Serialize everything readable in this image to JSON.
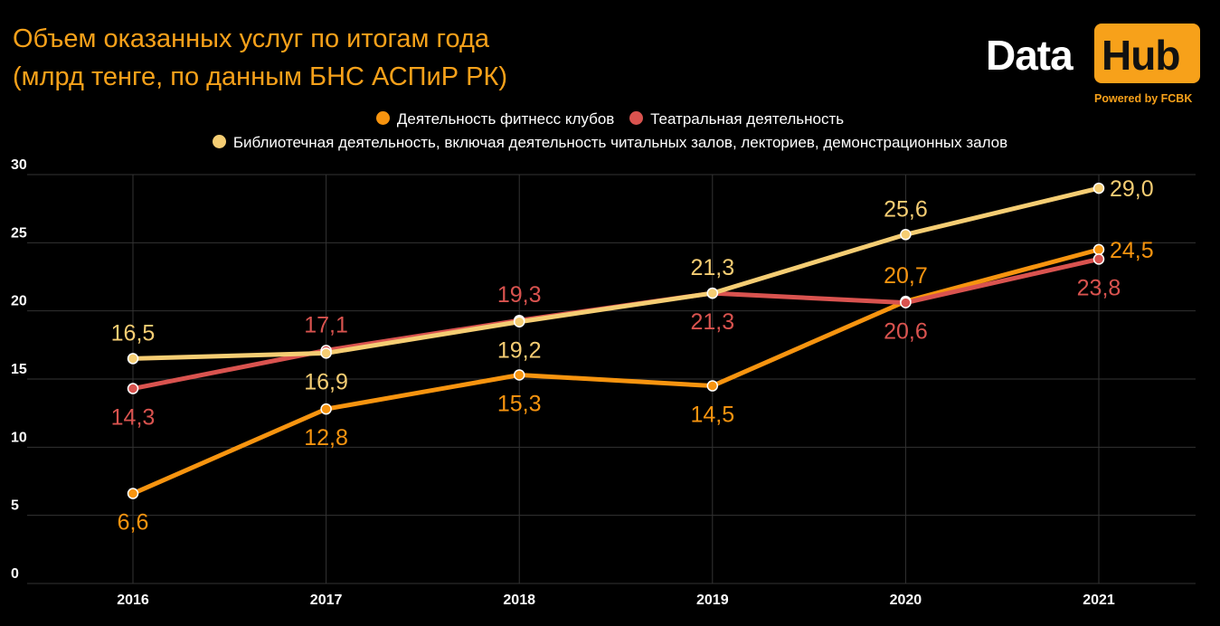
{
  "title": {
    "line1": "Объем оказанных услуг по итогам года",
    "line2": "(млрд тенге, по данным БНС АСПиР РК)"
  },
  "logo": {
    "word1": "Data",
    "word2": "Hub",
    "tagline": "Powered by FCBK"
  },
  "colors": {
    "background": "#000000",
    "accent": "#f7a11a",
    "grid": "#333333"
  },
  "chart_data": {
    "type": "line",
    "x": [
      "2016",
      "2017",
      "2018",
      "2019",
      "2020",
      "2021"
    ],
    "ylim": [
      0,
      30
    ],
    "yticks": [
      "0",
      "5",
      "10",
      "15",
      "20",
      "25",
      "30"
    ],
    "grid": true,
    "legend_position": "top-center",
    "series": [
      {
        "name": "Деятельность фитнесс клубов",
        "color": "#f7940f",
        "values": [
          6.6,
          12.8,
          15.3,
          14.5,
          20.7,
          24.5
        ],
        "labels": [
          "6,6",
          "12,8",
          "15,3",
          "14,5",
          "20,7",
          "24,5"
        ],
        "label_pos": [
          "below",
          "below",
          "below",
          "below",
          "above",
          "right"
        ]
      },
      {
        "name": "Театральная деятельность",
        "color": "#d9534f",
        "values": [
          14.3,
          17.1,
          19.3,
          21.3,
          20.6,
          23.8
        ],
        "labels": [
          "14,3",
          "17,1",
          "19,3",
          "21,3",
          "20,6",
          "23,8"
        ],
        "label_pos": [
          "below",
          "above",
          "above",
          "below",
          "below",
          "below"
        ]
      },
      {
        "name": "Библиотечная деятельность, включая деятельность читальных залов, лекториев, демонстрационных залов",
        "color": "#f5cd73",
        "values": [
          16.5,
          16.9,
          19.2,
          21.3,
          25.6,
          29.0
        ],
        "labels": [
          "16,5",
          "16,9",
          "19,2",
          "21,3",
          "25,6",
          "29,0"
        ],
        "label_pos": [
          "above",
          "below",
          "below",
          "above",
          "above",
          "right"
        ]
      }
    ]
  }
}
